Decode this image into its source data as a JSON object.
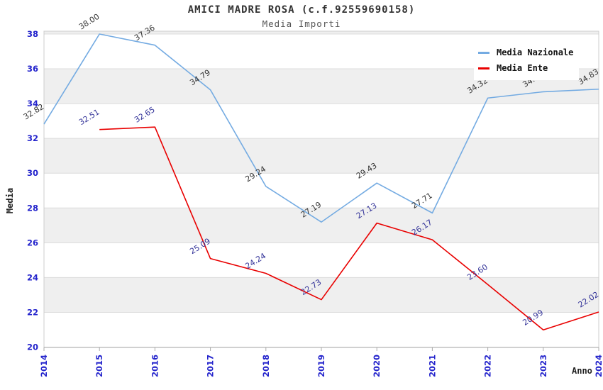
{
  "chart_data": {
    "type": "line",
    "title": "AMICI MADRE ROSA (c.f.92559690158)",
    "subtitle": "Media Importi",
    "xlabel": "Anno",
    "ylabel": "Media",
    "x": [
      "2014",
      "2015",
      "2016",
      "2017",
      "2018",
      "2019",
      "2020",
      "2021",
      "2022",
      "2023",
      "2024"
    ],
    "ylim": [
      20,
      38
    ],
    "ytick_step": 2,
    "grid": "horizontal gridlines every 2 units with alternating light-gray band shading",
    "legend_position": "top-right",
    "colors": {
      "axis_tick_label": "#2424cc",
      "band_shade": "#efefef",
      "gridline": "#dcdcdc",
      "plot_border": "#cccccc",
      "tick_mark": "#aaaaaa"
    },
    "series": [
      {
        "name": "Media Nazionale",
        "color": "#74abe2",
        "label_color": "#333333",
        "values": [
          32.82,
          38.0,
          37.36,
          34.79,
          29.24,
          27.19,
          29.43,
          27.71,
          34.32,
          34.68,
          34.83
        ]
      },
      {
        "name": "Media Ente",
        "color": "#e90000",
        "label_color": "#333399",
        "values": [
          null,
          32.51,
          32.65,
          25.09,
          24.24,
          22.73,
          27.13,
          26.17,
          23.6,
          20.99,
          22.02
        ]
      }
    ]
  }
}
